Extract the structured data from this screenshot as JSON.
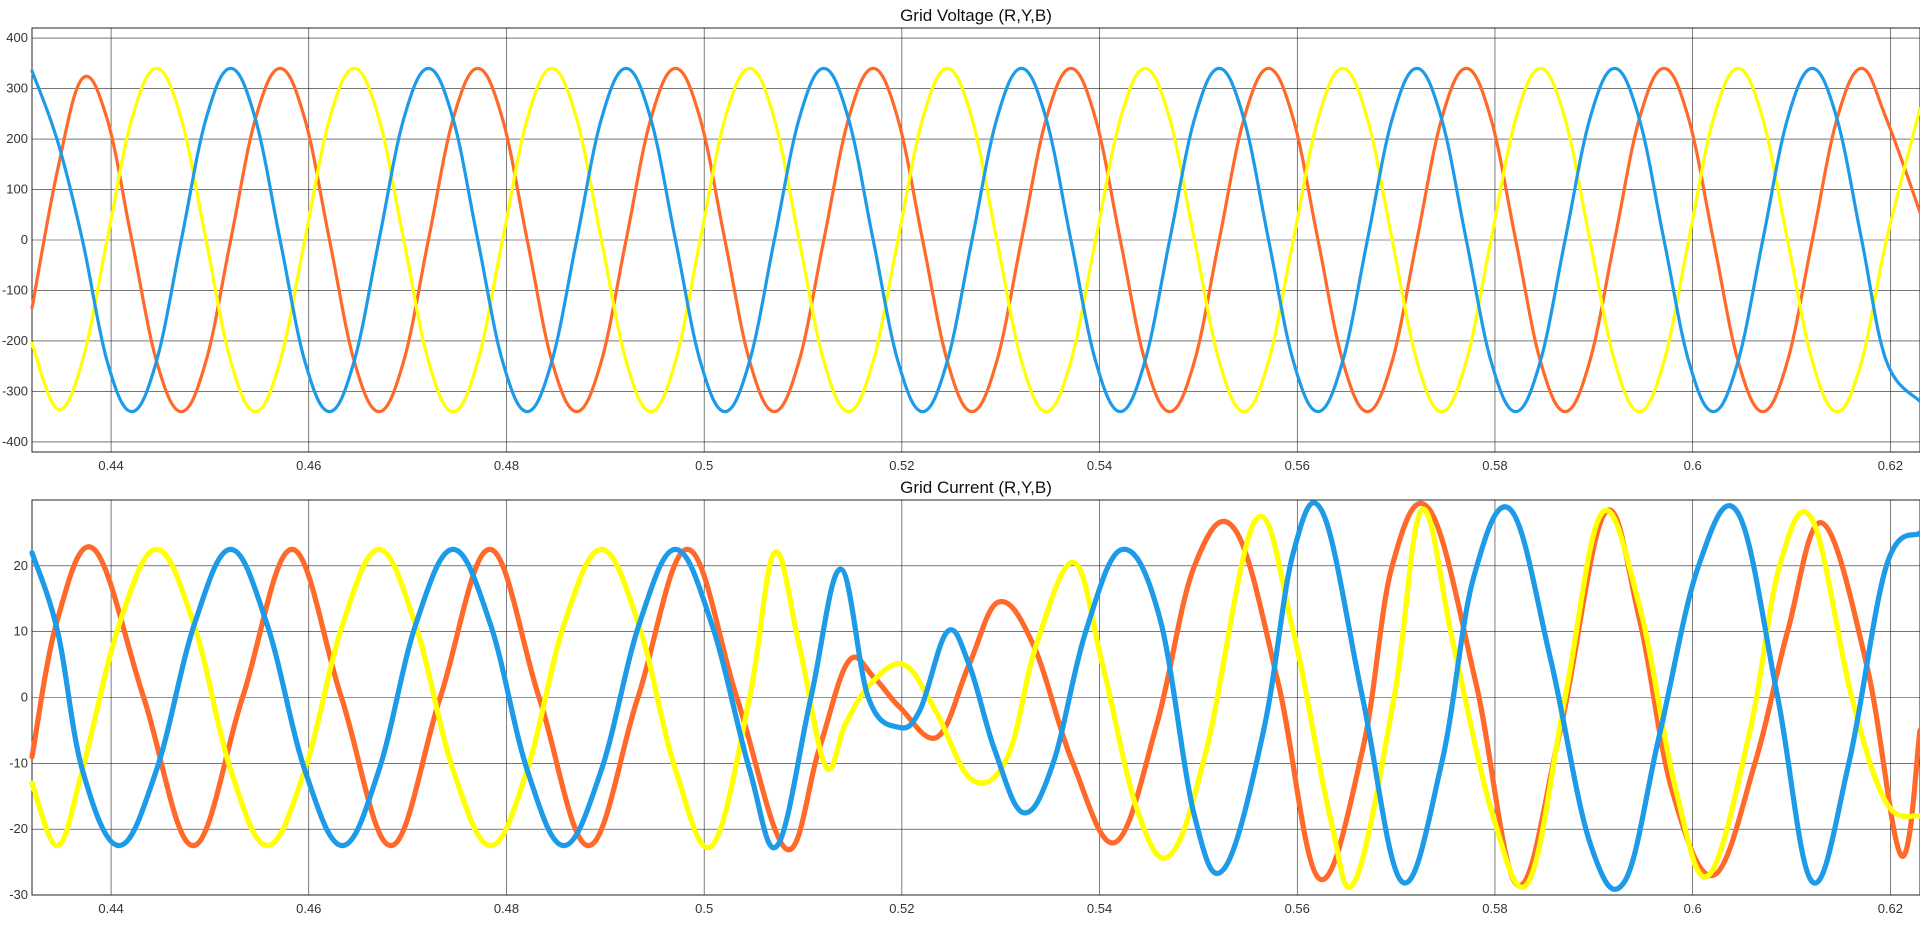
{
  "chart_data": [
    {
      "type": "line",
      "title": "Grid Voltage (R,Y,B)",
      "xlabel": "",
      "ylabel": "",
      "xlim": [
        0.432,
        0.623
      ],
      "ylim": [
        -420,
        420
      ],
      "grid": true,
      "legend": "none",
      "xticks": [
        0.44,
        0.46,
        0.48,
        0.5,
        0.52,
        0.54,
        0.56,
        0.58,
        0.6,
        0.62
      ],
      "xtick_labels": [
        "0.44",
        "0.46",
        "0.48",
        "0.5",
        "0.52",
        "0.54",
        "0.56",
        "0.58",
        "0.6",
        "0.62"
      ],
      "yticks": [
        -400,
        -300,
        -200,
        -100,
        0,
        100,
        200,
        300,
        400
      ],
      "ytick_labels": [
        "-400",
        "-300",
        "-200",
        "-100",
        "0",
        "100",
        "200",
        "300",
        "400"
      ],
      "series": [
        {
          "color": "#ff6a2a",
          "x": [
            0.432,
            0.4346,
            0.4371,
            0.4396,
            0.4421,
            0.4446,
            0.4471,
            0.4496,
            0.4521,
            0.4546,
            0.4571,
            0.4596,
            0.4621,
            0.4646,
            0.4671,
            0.4696,
            0.4721,
            0.4746,
            0.4771,
            0.4796,
            0.4821,
            0.4846,
            0.4871,
            0.4896,
            0.4921,
            0.4946,
            0.4971,
            0.4996,
            0.5021,
            0.5046,
            0.5071,
            0.5096,
            0.5121,
            0.5146,
            0.5171,
            0.5196,
            0.5221,
            0.5246,
            0.5271,
            0.5296,
            0.5321,
            0.5346,
            0.5371,
            0.5396,
            0.5421,
            0.5446,
            0.5471,
            0.5496,
            0.5521,
            0.5546,
            0.5571,
            0.5596,
            0.5621,
            0.5646,
            0.5671,
            0.5696,
            0.5721,
            0.5746,
            0.5771,
            0.5796,
            0.5821,
            0.5846,
            0.5871,
            0.5896,
            0.5921,
            0.5946,
            0.5971,
            0.5996,
            0.6021,
            0.6046,
            0.6071,
            0.6096,
            0.6121,
            0.6146,
            0.6171,
            0.6196,
            0.623
          ],
          "y": [
            -135,
            140,
            320,
            240,
            0,
            -240,
            -340,
            -240,
            0,
            240,
            340,
            240,
            0,
            -240,
            -340,
            -240,
            0,
            240,
            340,
            240,
            0,
            -240,
            -340,
            -240,
            0,
            240,
            340,
            240,
            0,
            -240,
            -340,
            -240,
            0,
            240,
            340,
            240,
            0,
            -240,
            -340,
            -240,
            0,
            240,
            340,
            240,
            0,
            -240,
            -340,
            -240,
            0,
            240,
            340,
            240,
            0,
            -240,
            -340,
            -240,
            0,
            240,
            340,
            240,
            0,
            -240,
            -340,
            -240,
            0,
            240,
            340,
            240,
            0,
            -240,
            -340,
            -240,
            0,
            240,
            340,
            240,
            55
          ]
        },
        {
          "color": "#ffff00",
          "x": [
            0.432,
            0.4346,
            0.4371,
            0.4396,
            0.4421,
            0.4446,
            0.4471,
            0.4496,
            0.4521,
            0.4546,
            0.4571,
            0.4596,
            0.4621,
            0.4646,
            0.4671,
            0.4696,
            0.4721,
            0.4746,
            0.4771,
            0.4796,
            0.4821,
            0.4846,
            0.4871,
            0.4896,
            0.4921,
            0.4946,
            0.4971,
            0.4996,
            0.5021,
            0.5046,
            0.5071,
            0.5096,
            0.5121,
            0.5146,
            0.5171,
            0.5196,
            0.5221,
            0.5246,
            0.5271,
            0.5296,
            0.5321,
            0.5346,
            0.5371,
            0.5396,
            0.5421,
            0.5446,
            0.5471,
            0.5496,
            0.5521,
            0.5546,
            0.5571,
            0.5596,
            0.5621,
            0.5646,
            0.5671,
            0.5696,
            0.5721,
            0.5746,
            0.5771,
            0.5796,
            0.5821,
            0.5846,
            0.5871,
            0.5896,
            0.5921,
            0.5946,
            0.5971,
            0.5996,
            0.6021,
            0.6046,
            0.6071,
            0.6096,
            0.6121,
            0.6146,
            0.6171,
            0.6196,
            0.623
          ],
          "y": [
            -205,
            -335,
            -240,
            0,
            240,
            340,
            240,
            0,
            -240,
            -340,
            -240,
            0,
            240,
            340,
            240,
            0,
            -240,
            -340,
            -240,
            0,
            240,
            340,
            240,
            0,
            -240,
            -340,
            -240,
            0,
            240,
            340,
            240,
            0,
            -240,
            -340,
            -240,
            0,
            240,
            340,
            240,
            0,
            -240,
            -340,
            -240,
            0,
            240,
            340,
            240,
            0,
            -240,
            -340,
            -240,
            0,
            240,
            340,
            240,
            0,
            -240,
            -340,
            -240,
            0,
            240,
            340,
            240,
            0,
            -240,
            -340,
            -240,
            0,
            240,
            340,
            240,
            0,
            -240,
            -340,
            -240,
            0,
            260
          ]
        },
        {
          "color": "#1e9be8",
          "x": [
            0.432,
            0.4346,
            0.4371,
            0.4396,
            0.4421,
            0.4446,
            0.4471,
            0.4496,
            0.4521,
            0.4546,
            0.4571,
            0.4596,
            0.4621,
            0.4646,
            0.4671,
            0.4696,
            0.4721,
            0.4746,
            0.4771,
            0.4796,
            0.4821,
            0.4846,
            0.4871,
            0.4896,
            0.4921,
            0.4946,
            0.4971,
            0.4996,
            0.5021,
            0.5046,
            0.5071,
            0.5096,
            0.5121,
            0.5146,
            0.5171,
            0.5196,
            0.5221,
            0.5246,
            0.5271,
            0.5296,
            0.5321,
            0.5346,
            0.5371,
            0.5396,
            0.5421,
            0.5446,
            0.5471,
            0.5496,
            0.5521,
            0.5546,
            0.5571,
            0.5596,
            0.5621,
            0.5646,
            0.5671,
            0.5696,
            0.5721,
            0.5746,
            0.5771,
            0.5796,
            0.5821,
            0.5846,
            0.5871,
            0.5896,
            0.5921,
            0.5946,
            0.5971,
            0.5996,
            0.6021,
            0.6046,
            0.6071,
            0.6096,
            0.6121,
            0.6146,
            0.6171,
            0.6196,
            0.623
          ],
          "y": [
            335,
            195,
            0,
            -240,
            -340,
            -240,
            0,
            240,
            340,
            240,
            0,
            -240,
            -340,
            -240,
            0,
            240,
            340,
            240,
            0,
            -240,
            -340,
            -240,
            0,
            240,
            340,
            240,
            0,
            -240,
            -340,
            -240,
            0,
            240,
            340,
            240,
            0,
            -240,
            -340,
            -240,
            0,
            240,
            340,
            240,
            0,
            -240,
            -340,
            -240,
            0,
            240,
            340,
            240,
            0,
            -240,
            -340,
            -240,
            0,
            240,
            340,
            240,
            0,
            -240,
            -340,
            -240,
            0,
            240,
            340,
            240,
            0,
            -240,
            -340,
            -240,
            0,
            240,
            340,
            240,
            0,
            -240,
            -320
          ]
        }
      ]
    },
    {
      "type": "line",
      "title": "Grid Current (R,Y,B)",
      "xlabel": "",
      "ylabel": "",
      "xlim": [
        0.432,
        0.623
      ],
      "ylim": [
        -30,
        30
      ],
      "grid": true,
      "legend": "none",
      "xticks": [
        0.44,
        0.46,
        0.48,
        0.5,
        0.52,
        0.54,
        0.56,
        0.58,
        0.6,
        0.62
      ],
      "xtick_labels": [
        "0.44",
        "0.46",
        "0.48",
        "0.5",
        "0.52",
        "0.54",
        "0.56",
        "0.58",
        "0.6",
        "0.62"
      ],
      "yticks": [
        -30,
        -20,
        -10,
        0,
        10,
        20
      ],
      "ytick_labels": [
        "-30",
        "-20",
        "-10",
        "0",
        "10",
        "20"
      ],
      "series": [
        {
          "color": "#ff6a2a",
          "x": [
            0.432,
            0.4346,
            0.4383,
            0.4433,
            0.4483,
            0.4533,
            0.4583,
            0.4633,
            0.4683,
            0.4733,
            0.4783,
            0.4833,
            0.4883,
            0.4933,
            0.4983,
            0.5033,
            0.5083,
            0.5116,
            0.5146,
            0.5172,
            0.5198,
            0.5236,
            0.5268,
            0.5298,
            0.5333,
            0.5373,
            0.5416,
            0.5458,
            0.5496,
            0.5537,
            0.5581,
            0.5622,
            0.5666,
            0.5696,
            0.5734,
            0.5781,
            0.5823,
            0.5866,
            0.5911,
            0.5946,
            0.5979,
            0.6021,
            0.6063,
            0.6096,
            0.6131,
            0.6176,
            0.6211,
            0.623
          ],
          "y": [
            -9,
            12,
            22.5,
            0,
            -22.5,
            0,
            22.5,
            0,
            -22.5,
            0,
            22.5,
            0,
            -22.5,
            0,
            22.5,
            0,
            -23,
            -8,
            5.5,
            3,
            -1.5,
            -6,
            5,
            14.5,
            8,
            -10,
            -22,
            -4,
            20,
            25.5,
            2,
            -27.5,
            -8,
            20,
            28.5,
            2,
            -28.5,
            -5,
            28,
            12,
            -14,
            -27,
            -10,
            10,
            26.5,
            5,
            -24,
            -5
          ]
        },
        {
          "color": "#ffff00",
          "x": [
            0.432,
            0.4346,
            0.4371,
            0.4408,
            0.4446,
            0.4484,
            0.4521,
            0.4558,
            0.4596,
            0.4634,
            0.4671,
            0.4708,
            0.4746,
            0.4784,
            0.4821,
            0.4858,
            0.4896,
            0.4934,
            0.4971,
            0.5008,
            0.5046,
            0.5071,
            0.5096,
            0.5123,
            0.5143,
            0.5168,
            0.5202,
            0.5234,
            0.5271,
            0.5307,
            0.5336,
            0.5374,
            0.5403,
            0.5438,
            0.5471,
            0.5508,
            0.5558,
            0.5596,
            0.5633,
            0.5658,
            0.5698,
            0.5726,
            0.5758,
            0.5798,
            0.5834,
            0.5871,
            0.5908,
            0.5946,
            0.5983,
            0.6016,
            0.6058,
            0.6088,
            0.6121,
            0.6161,
            0.6196,
            0.623
          ],
          "y": [
            -13,
            -22.5,
            -11,
            11,
            22.5,
            11,
            -11,
            -22.5,
            -11,
            11,
            22.5,
            11,
            -11,
            -22.5,
            -11,
            11,
            22.5,
            11,
            -11,
            -22.5,
            0,
            22,
            8,
            -10.5,
            -4,
            2,
            5,
            -2,
            -12.5,
            -9,
            8,
            20.5,
            5,
            -17,
            -24,
            -8,
            27,
            10,
            -18,
            -28,
            0,
            28.5,
            8,
            -18,
            -28,
            0,
            28,
            14,
            -14,
            -27,
            -5,
            20,
            27,
            0,
            -16,
            -18
          ]
        },
        {
          "color": "#1e9be8",
          "x": [
            0.432,
            0.4346,
            0.4371,
            0.4408,
            0.4446,
            0.4484,
            0.4521,
            0.4558,
            0.4596,
            0.4634,
            0.4671,
            0.4708,
            0.4746,
            0.4784,
            0.4821,
            0.4858,
            0.4896,
            0.4934,
            0.4971,
            0.5008,
            0.5046,
            0.5074,
            0.5108,
            0.5138,
            0.5166,
            0.5196,
            0.5218,
            0.5246,
            0.5268,
            0.5294,
            0.5323,
            0.5353,
            0.5386,
            0.5423,
            0.5461,
            0.5496,
            0.5526,
            0.5566,
            0.5596,
            0.5626,
            0.5666,
            0.5706,
            0.5746,
            0.5778,
            0.5816,
            0.5856,
            0.5896,
            0.5931,
            0.5966,
            0.6006,
            0.6046,
            0.6086,
            0.6121,
            0.6158,
            0.6196,
            0.623
          ],
          "y": [
            22,
            10,
            -11,
            -22.5,
            -11,
            11,
            22.5,
            11,
            -11,
            -22.5,
            -11,
            11,
            22.5,
            11,
            -11,
            -22.5,
            -11,
            11,
            22.5,
            11,
            -11,
            -22.5,
            0,
            19.5,
            0,
            -4.5,
            -2,
            10,
            5,
            -8,
            -17.5,
            -10,
            10,
            22.5,
            12,
            -18,
            -26,
            -5,
            22,
            28,
            0,
            -28,
            -10,
            18,
            28.5,
            6,
            -22,
            -28,
            -6,
            20,
            28,
            0,
            -28,
            -10,
            20,
            25
          ]
        }
      ]
    }
  ]
}
